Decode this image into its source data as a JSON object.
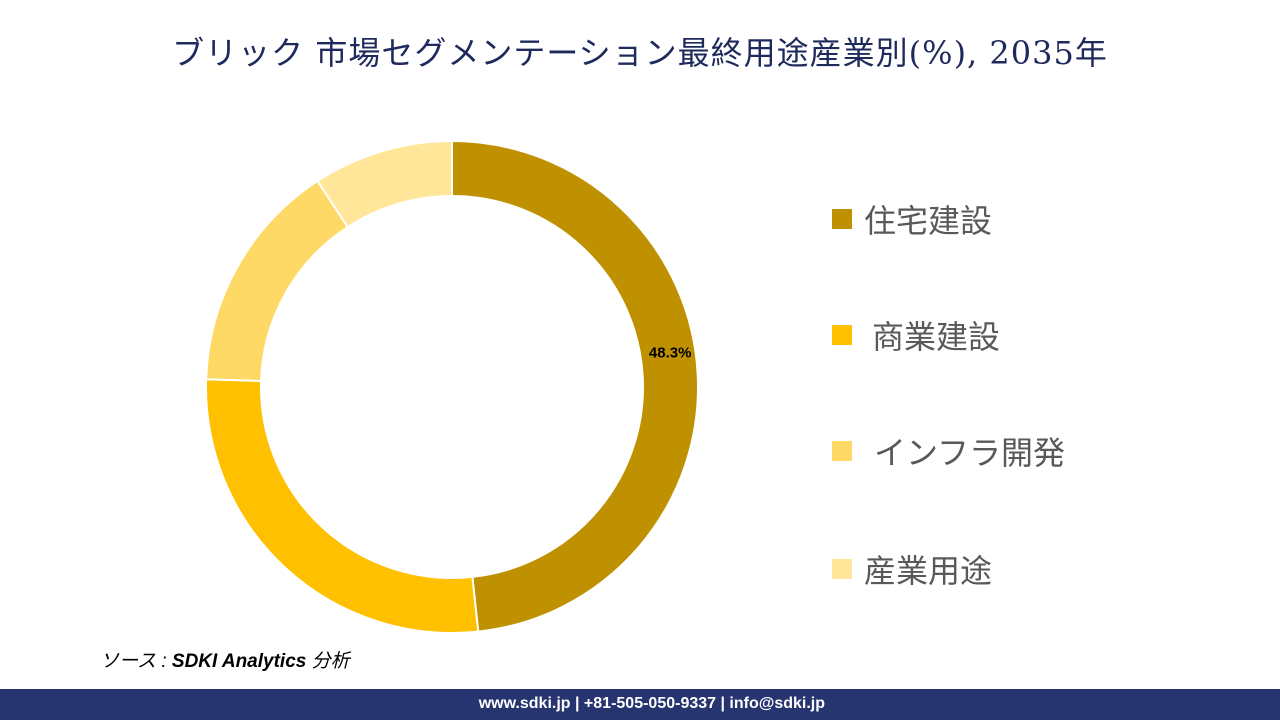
{
  "title": "ブリック 市場セグメンテーション最終用途産業別(%), 2035年",
  "chart_data": {
    "type": "pie",
    "variant": "donut",
    "title": "ブリック 市場セグメンテーション最終用途産業別(%), 2035年",
    "categories": [
      "住宅建設",
      "商業建設",
      "インフラ開発",
      "産業用途"
    ],
    "values": [
      48.3,
      27.2,
      15.3,
      9.2
    ],
    "data_labels": [
      "48.3%",
      null,
      null,
      null
    ],
    "colors": [
      "#BF9000",
      "#FFC000",
      "#FFD966",
      "#FFE699"
    ],
    "legend_position": "right"
  },
  "source": {
    "prefix": "ソース : ",
    "name": "SDKI Analytics",
    "suffix": " 分析"
  },
  "footer": "www.sdki.jp | +81-505-050-9337 | info@sdki.jp"
}
